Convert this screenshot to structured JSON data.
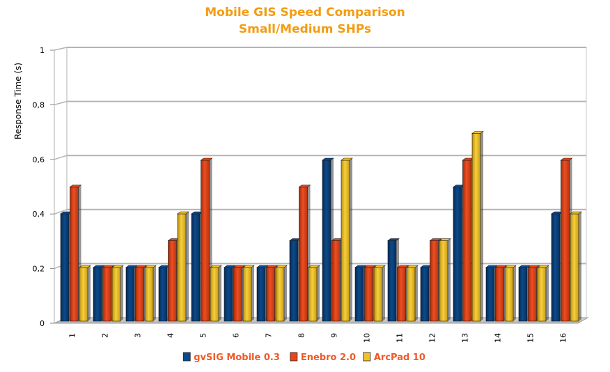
{
  "chart_data": {
    "type": "bar",
    "title": "Mobile GIS Speed Comparison",
    "subtitle": "Small/Medium SHPs",
    "ylabel": "Response Time (s)",
    "xlabel": "",
    "ylim": [
      0,
      1
    ],
    "yticks": [
      "0",
      "0,2",
      "0,4",
      "0,6",
      "0,8",
      "1"
    ],
    "grid": true,
    "legend_position": "bottom",
    "categories": [
      "1",
      "2",
      "3",
      "4",
      "5",
      "6",
      "7",
      "8",
      "9",
      "10",
      "11",
      "12",
      "13",
      "14",
      "15",
      "16"
    ],
    "series": [
      {
        "name": "gvSIG Mobile 0.3",
        "color": "#0b4a8c",
        "values": [
          0.4,
          0.2,
          0.2,
          0.2,
          0.4,
          0.2,
          0.2,
          0.3,
          0.6,
          0.2,
          0.3,
          0.2,
          0.5,
          0.2,
          0.2,
          0.4
        ]
      },
      {
        "name": "Enebro 2.0",
        "color": "#e8451b",
        "values": [
          0.5,
          0.2,
          0.2,
          0.3,
          0.6,
          0.2,
          0.2,
          0.5,
          0.3,
          0.2,
          0.2,
          0.3,
          0.6,
          0.2,
          0.2,
          0.6
        ]
      },
      {
        "name": "ArcPad 10",
        "color": "#f2c12e",
        "values": [
          0.2,
          0.2,
          0.2,
          0.4,
          0.2,
          0.2,
          0.2,
          0.2,
          0.6,
          0.2,
          0.2,
          0.3,
          0.7,
          0.2,
          0.2,
          0.4
        ]
      }
    ]
  }
}
